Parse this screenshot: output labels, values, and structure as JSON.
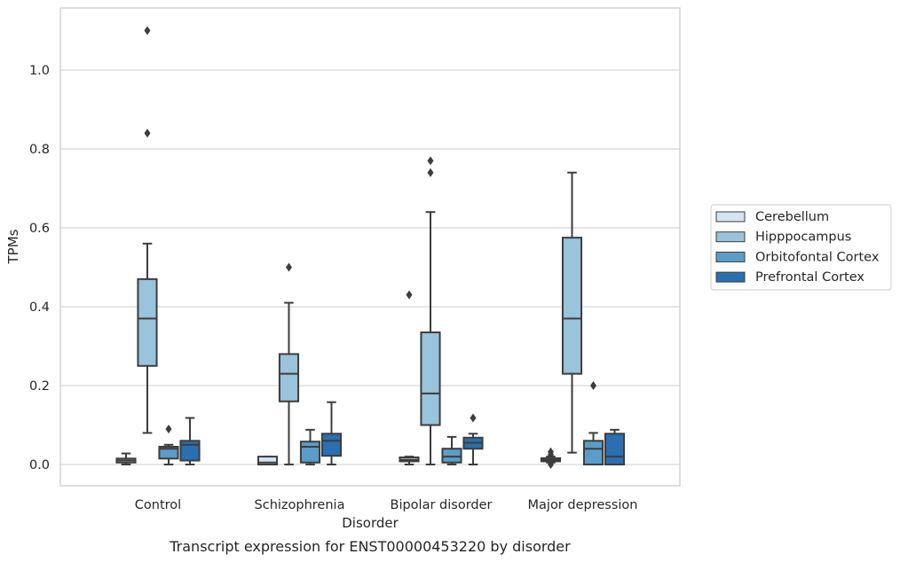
{
  "caption": "Transcript expression for ENST00000453220 by disorder",
  "chart_data": {
    "type": "box",
    "title": "",
    "xlabel": "Disorder",
    "ylabel": "TPMs",
    "ylim": [
      -0.05,
      1.16
    ],
    "yticks": [
      "0.0",
      "0.2",
      "0.4",
      "0.6",
      "0.8",
      "1.0"
    ],
    "grid": "horizontal",
    "legend_position": "right",
    "categories": [
      "Control",
      "Schizophrenia",
      "Bipolar disorder",
      "Major depression"
    ],
    "series": [
      {
        "name": "Cerebellum",
        "color": "#d4e4f3",
        "boxes": [
          {
            "whisker_low": 0.0,
            "q1": 0.005,
            "median": 0.01,
            "q3": 0.015,
            "whisker_high": 0.028,
            "outliers": []
          },
          {
            "whisker_low": 0.0,
            "q1": 0.0,
            "median": 0.005,
            "q3": 0.02,
            "whisker_high": 0.02,
            "outliers": []
          },
          {
            "whisker_low": 0.0,
            "q1": 0.008,
            "median": 0.012,
            "q3": 0.018,
            "whisker_high": 0.02,
            "outliers": [
              0.43
            ]
          },
          {
            "whisker_low": 0.005,
            "q1": 0.008,
            "median": 0.012,
            "q3": 0.016,
            "whisker_high": 0.02,
            "outliers": [
              0.0,
              0.025,
              0.032
            ]
          }
        ]
      },
      {
        "name": "Hipppocampus",
        "color": "#9ac3dc",
        "boxes": [
          {
            "whisker_low": 0.08,
            "q1": 0.25,
            "median": 0.37,
            "q3": 0.47,
            "whisker_high": 0.56,
            "outliers": [
              0.84,
              1.1
            ]
          },
          {
            "whisker_low": 0.0,
            "q1": 0.16,
            "median": 0.23,
            "q3": 0.28,
            "whisker_high": 0.41,
            "outliers": [
              0.5
            ]
          },
          {
            "whisker_low": 0.0,
            "q1": 0.1,
            "median": 0.18,
            "q3": 0.335,
            "whisker_high": 0.64,
            "outliers": [
              0.74,
              0.77
            ]
          },
          {
            "whisker_low": 0.03,
            "q1": 0.23,
            "median": 0.37,
            "q3": 0.575,
            "whisker_high": 0.74,
            "outliers": []
          }
        ]
      },
      {
        "name": "Orbitofontal Cortex",
        "color": "#5a9dc8",
        "boxes": [
          {
            "whisker_low": 0.0,
            "q1": 0.015,
            "median": 0.04,
            "q3": 0.045,
            "whisker_high": 0.05,
            "outliers": [
              0.09
            ]
          },
          {
            "whisker_low": 0.0,
            "q1": 0.005,
            "median": 0.045,
            "q3": 0.058,
            "whisker_high": 0.088,
            "outliers": []
          },
          {
            "whisker_low": 0.0,
            "q1": 0.005,
            "median": 0.02,
            "q3": 0.04,
            "whisker_high": 0.07,
            "outliers": []
          },
          {
            "whisker_low": 0.0,
            "q1": 0.0,
            "median": 0.04,
            "q3": 0.06,
            "whisker_high": 0.08,
            "outliers": [
              0.2
            ]
          }
        ]
      },
      {
        "name": "Prefrontal Cortex",
        "color": "#2a6fb0",
        "boxes": [
          {
            "whisker_low": 0.0,
            "q1": 0.01,
            "median": 0.05,
            "q3": 0.06,
            "whisker_high": 0.118,
            "outliers": []
          },
          {
            "whisker_low": 0.0,
            "q1": 0.022,
            "median": 0.06,
            "q3": 0.078,
            "whisker_high": 0.158,
            "outliers": []
          },
          {
            "whisker_low": 0.0,
            "q1": 0.04,
            "median": 0.055,
            "q3": 0.068,
            "whisker_high": 0.078,
            "outliers": [
              0.118
            ]
          },
          {
            "whisker_low": 0.0,
            "q1": 0.0,
            "median": 0.02,
            "q3": 0.078,
            "whisker_high": 0.088,
            "outliers": []
          }
        ]
      }
    ]
  }
}
